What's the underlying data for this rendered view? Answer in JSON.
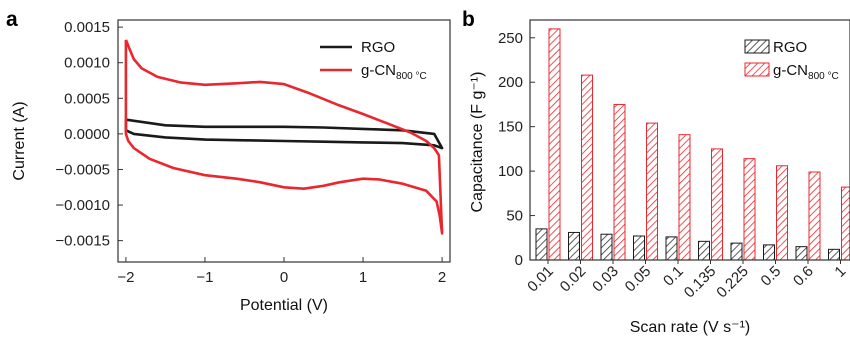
{
  "colors": {
    "rgo": "#1a1a1a",
    "gcn": "#e8282e"
  },
  "chart_data": [
    {
      "type": "line",
      "panel_label": "a",
      "xlabel": "Potential (V)",
      "ylabel": "Current (A)",
      "xlim": [
        -2.1,
        2.1
      ],
      "ylim": [
        -0.0018,
        0.0016
      ],
      "xticks": [
        -2,
        -1,
        0,
        1,
        2
      ],
      "xtick_labels": [
        "−2",
        "−1",
        "0",
        "1",
        "2"
      ],
      "yticks": [
        -0.0015,
        -0.001,
        -0.0005,
        0,
        0.0005,
        0.001,
        0.0015
      ],
      "ytick_labels": [
        "−0.0015",
        "−0.0010",
        "−0.0005",
        "0.0000",
        "0.0005",
        "0.0010",
        "0.0015"
      ],
      "legend_position": "top-right",
      "legend": [
        {
          "key": "rgo",
          "label": "RGO",
          "sub": ""
        },
        {
          "key": "gcn",
          "label": "g-CN",
          "sub": "800 °C"
        }
      ],
      "series": [
        {
          "key": "rgo",
          "name": "RGO",
          "x": [
            -2.0,
            -1.5,
            -1.0,
            -0.5,
            0.0,
            0.5,
            1.0,
            1.5,
            1.9,
            2.0,
            1.9,
            1.5,
            1.0,
            0.5,
            0.0,
            -0.5,
            -1.0,
            -1.5,
            -1.9,
            -2.0,
            -2.0
          ],
          "y": [
            0.0002,
            0.00012,
            0.0001,
            0.0001,
            0.0001,
            9e-05,
            7e-05,
            5e-05,
            0.0,
            -0.0002,
            -0.00016,
            -0.00013,
            -0.00012,
            -0.00011,
            -0.0001,
            -9e-05,
            -8e-05,
            -5e-05,
            0.0,
            5e-05,
            0.0002
          ]
        },
        {
          "key": "gcn",
          "name": "g-CN800 °C",
          "x": [
            -2.0,
            -1.95,
            -1.9,
            -1.8,
            -1.6,
            -1.3,
            -1.0,
            -0.6,
            -0.3,
            0.0,
            0.3,
            0.7,
            1.0,
            1.3,
            1.6,
            1.8,
            1.9,
            1.96,
            2.0,
            1.97,
            1.93,
            1.8,
            1.5,
            1.2,
            1.0,
            0.7,
            0.5,
            0.25,
            0.0,
            -0.3,
            -0.6,
            -1.0,
            -1.4,
            -1.7,
            -1.9,
            -1.97,
            -2.0,
            -2.0
          ],
          "y": [
            0.00132,
            0.00118,
            0.00105,
            0.00092,
            0.0008,
            0.00072,
            0.00069,
            0.00071,
            0.00073,
            0.0007,
            0.00058,
            0.0004,
            0.00028,
            0.00015,
            2e-05,
            -0.0001,
            -0.0002,
            -0.0003,
            -0.0014,
            -0.00115,
            -0.00095,
            -0.0008,
            -0.0007,
            -0.00064,
            -0.00063,
            -0.00068,
            -0.00073,
            -0.00077,
            -0.00075,
            -0.00068,
            -0.00063,
            -0.00058,
            -0.00048,
            -0.00035,
            -0.0002,
            -0.0001,
            0.0,
            0.00132
          ]
        }
      ]
    },
    {
      "type": "bar",
      "panel_label": "b",
      "xlabel": "Scan rate (V s⁻¹)",
      "ylabel": "Capacitance (F g⁻¹)",
      "ylim": [
        0,
        270
      ],
      "yticks": [
        0,
        50,
        100,
        150,
        200,
        250
      ],
      "ytick_labels": [
        "0",
        "50",
        "100",
        "150",
        "200",
        "250"
      ],
      "categories": [
        "0.01",
        "0.02",
        "0.03",
        "0.05",
        "0.1",
        "0.135",
        "0.225",
        "0.5",
        "0.6",
        "1"
      ],
      "legend_position": "top-right",
      "legend": [
        {
          "key": "rgo",
          "label": "RGO",
          "sub": ""
        },
        {
          "key": "gcn",
          "label": "g-CN",
          "sub": "800 °C"
        }
      ],
      "series": [
        {
          "key": "rgo",
          "name": "RGO",
          "values": [
            35,
            31,
            29,
            27,
            26,
            21,
            19,
            17,
            15,
            12
          ]
        },
        {
          "key": "gcn",
          "name": "g-CN800 °C",
          "values": [
            260,
            208,
            175,
            154,
            141,
            125,
            114,
            106,
            99,
            82
          ]
        }
      ]
    }
  ]
}
